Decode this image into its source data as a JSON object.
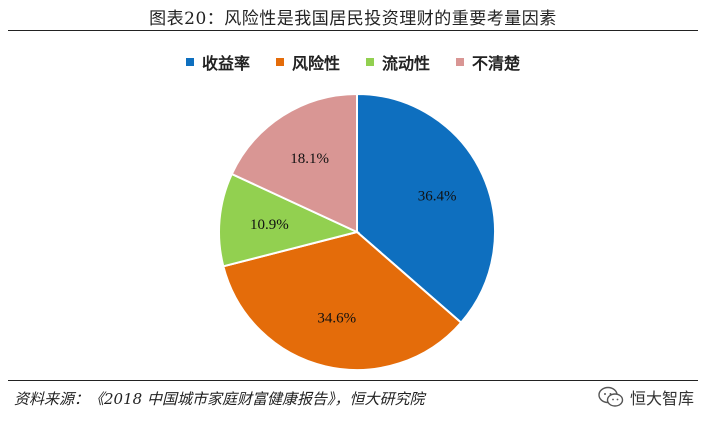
{
  "header": {
    "title": "图表20：风险性是我国居民投资理财的重要考量因素"
  },
  "chart_data": {
    "type": "pie",
    "categories": [
      "收益率",
      "风险性",
      "流动性",
      "不清楚"
    ],
    "values": [
      36.4,
      34.6,
      10.9,
      18.1
    ],
    "labels": [
      "36.4%",
      "34.6%",
      "10.9%",
      "18.1%"
    ],
    "colors": [
      "#0E6FBF",
      "#E46C0A",
      "#92D050",
      "#D99694"
    ],
    "title": "图表20：风险性是我国居民投资理财的重要考量因素",
    "legend_position": "top-center",
    "start_angle": "12 o'clock, clockwise"
  },
  "footer": {
    "source": "资料来源：《2018 中国城市家庭财富健康报告》，恒大研究院",
    "watermark": "恒大智库",
    "watermark_icon": "wechat-icon"
  }
}
